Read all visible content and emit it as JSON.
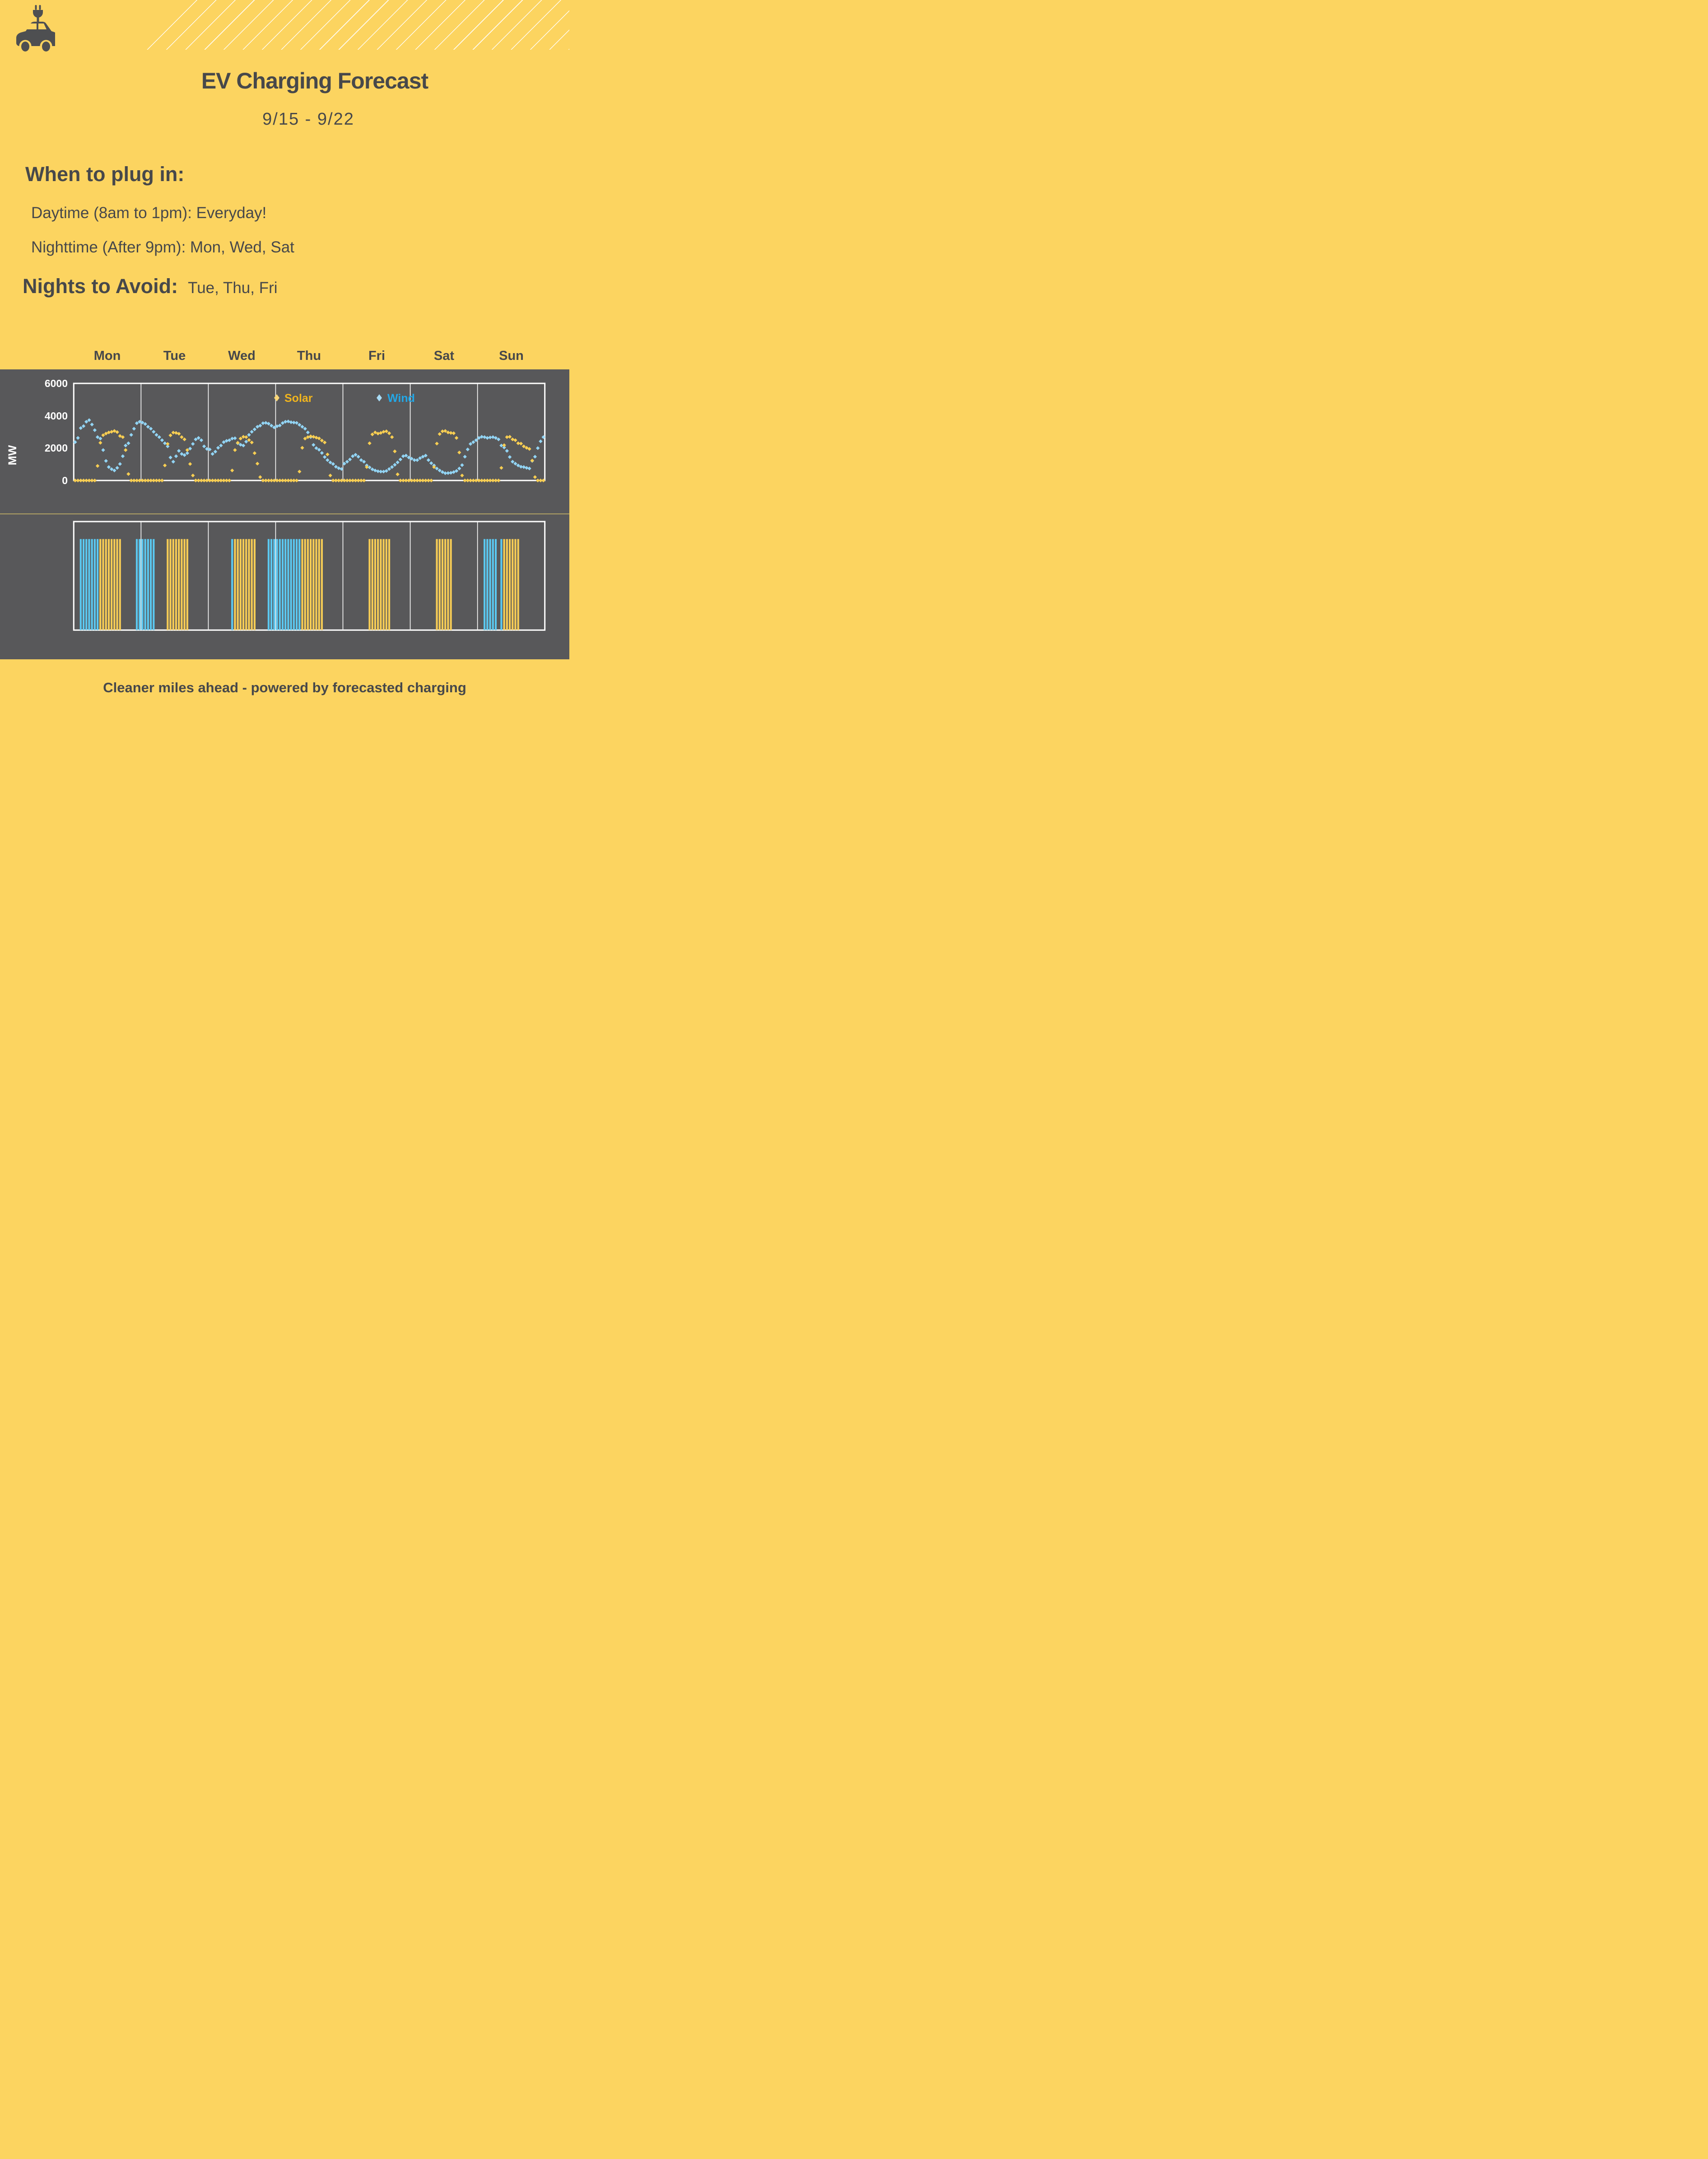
{
  "header": {
    "title": "EV Charging Forecast",
    "date_range": "9/15 - 9/22"
  },
  "icon": "ev-car-with-plug-icon",
  "recommendations": {
    "heading": "When to plug in:",
    "daytime": "Daytime (8am to 1pm): Everyday!",
    "nighttime": "Nighttime (After 9pm): Mon, Wed, Sat"
  },
  "avoid": {
    "label": "Nights to Avoid:",
    "value": "Tue, Thu, Fri"
  },
  "days": [
    "Mon",
    "Tue",
    "Wed",
    "Thu",
    "Fri",
    "Sat",
    "Sun"
  ],
  "footer": {
    "text": "Cleaner miles ahead - powered by forecasted charging"
  },
  "colors": {
    "background": "#FCD460",
    "panel_gray": "#58585A",
    "ink": "#47484A",
    "chart_frame": "#FFFFFF",
    "solar_marker": "#F8CE52",
    "solar_label": "#F0B41E",
    "wind_marker": "#92D4F4",
    "wind_label": "#23A7E6",
    "stripe_solar": "#F6CC55",
    "stripe_wind": "#5BC8F0",
    "panel_divider": "#B1A264"
  },
  "chart_data": [
    {
      "type": "scatter",
      "ylabel": "MW",
      "ylim": [
        0,
        6000
      ],
      "yticks": [
        0,
        2000,
        4000,
        6000
      ],
      "ytick_labels": [
        "6000",
        "4000",
        "2000",
        "0"
      ],
      "x_categories": [
        "Mon",
        "Tue",
        "Wed",
        "Thu",
        "Fri",
        "Sat",
        "Sun"
      ],
      "x_unit": "hour of day (0-23, hourly points per day)",
      "legend": {
        "solar": "Solar",
        "wind": "Wind",
        "position": "top-center-inside"
      },
      "grid": "vertical day dividers only",
      "series": [
        {
          "name": "Wind",
          "days": {
            "Mon": [
              2370,
              2630,
              3240,
              3360,
              3630,
              3730,
              3460,
              3110,
              2680,
              2590,
              1880,
              1210,
              830,
              700,
              620,
              780,
              1020,
              1500,
              2160,
              2300,
              2820,
              3200,
              3540,
              3630
            ],
            "Tue": [
              3580,
              3490,
              3320,
              3200,
              3010,
              2820,
              2680,
              2490,
              2300,
              2110,
              1420,
              1160,
              1500,
              1830,
              1640,
              1570,
              1690,
              1970,
              2260,
              2540,
              2630,
              2490,
              2110,
              1950
            ],
            "Wed": [
              1920,
              1640,
              1780,
              2020,
              2160,
              2370,
              2450,
              2490,
              2590,
              2610,
              2300,
              2210,
              2160,
              2400,
              2820,
              3010,
              3160,
              3320,
              3390,
              3540,
              3560,
              3510,
              3390,
              3280
            ],
            "Thu": [
              3350,
              3400,
              3550,
              3630,
              3650,
              3600,
              3580,
              3560,
              3440,
              3320,
              3200,
              2970,
              2680,
              2200,
              2000,
              1900,
              1700,
              1450,
              1260,
              1115,
              1020,
              850,
              760,
              710
            ],
            "Fri": [
              1040,
              1160,
              1300,
              1500,
              1590,
              1470,
              1260,
              1160,
              930,
              810,
              690,
              620,
              570,
              550,
              550,
              590,
              710,
              830,
              970,
              1120,
              1300,
              1500,
              1540,
              1420
            ],
            "Sat": [
              1350,
              1260,
              1260,
              1380,
              1470,
              1540,
              1260,
              1070,
              930,
              740,
              620,
              520,
              450,
              460,
              475,
              520,
              590,
              740,
              950,
              1470,
              1920,
              2260,
              2370,
              2490
            ],
            "Sun": [
              2630,
              2700,
              2680,
              2630,
              2660,
              2680,
              2630,
              2540,
              2160,
              2040,
              1830,
              1450,
              1160,
              1040,
              930,
              850,
              830,
              780,
              740,
              1210,
              1470,
              2000,
              2420,
              2680
            ]
          }
        },
        {
          "name": "Solar",
          "days": {
            "Mon": [
              0,
              0,
              0,
              0,
              0,
              0,
              0,
              0,
              900,
              2330,
              2800,
              2900,
              2970,
              3010,
              3060,
              2990,
              2750,
              2680,
              1880,
              400,
              0,
              0,
              0,
              0
            ],
            "Tue": [
              0,
              0,
              0,
              0,
              0,
              0,
              0,
              0,
              930,
              2260,
              2790,
              2960,
              2940,
              2890,
              2680,
              2540,
              1880,
              1020,
              310,
              0,
              0,
              0,
              0,
              0
            ],
            "Wed": [
              0,
              0,
              0,
              0,
              0,
              0,
              0,
              0,
              620,
              1880,
              2330,
              2590,
              2700,
              2680,
              2500,
              2350,
              1690,
              1040,
              210,
              0,
              0,
              0,
              0,
              0
            ],
            "Thu": [
              0,
              0,
              0,
              0,
              0,
              0,
              0,
              0,
              550,
              2020,
              2590,
              2680,
              2730,
              2700,
              2650,
              2600,
              2470,
              2350,
              1610,
              310,
              0,
              0,
              0,
              0
            ],
            "Fri": [
              0,
              0,
              0,
              0,
              0,
              0,
              0,
              0,
              830,
              2300,
              2850,
              2970,
              2900,
              2940,
              3010,
              3040,
              2920,
              2680,
              1800,
              380,
              0,
              0,
              0,
              0
            ],
            "Sat": [
              0,
              0,
              0,
              0,
              0,
              0,
              0,
              0,
              830,
              2280,
              2870,
              3040,
              3060,
              2970,
              2940,
              2920,
              2630,
              1730,
              310,
              0,
              0,
              0,
              0,
              0
            ],
            "Sun": [
              0,
              0,
              0,
              0,
              0,
              0,
              0,
              0,
              780,
              2180,
              2680,
              2700,
              2540,
              2490,
              2300,
              2280,
              2110,
              2020,
              1950,
              1230,
              210,
              0,
              0,
              0
            ]
          }
        }
      ]
    },
    {
      "type": "bar",
      "windows": [
        {
          "day": "Mon",
          "source": "wind",
          "from_hour": 2,
          "to_hour": 9
        },
        {
          "day": "Mon",
          "source": "solar",
          "from_hour": 9,
          "to_hour": 17
        },
        {
          "day": "Mon",
          "source": "wind",
          "from_hour": 22,
          "to_hour": 29
        },
        {
          "day": "Tue",
          "source": "solar",
          "from_hour": 9,
          "to_hour": 17
        },
        {
          "day": "Wed",
          "source": "wind",
          "from_hour": 8,
          "to_hour": 9
        },
        {
          "day": "Wed",
          "source": "solar",
          "from_hour": 9,
          "to_hour": 17
        },
        {
          "day": "Wed",
          "source": "wind",
          "from_hour": 21,
          "to_hour": 33
        },
        {
          "day": "Thu",
          "source": "solar",
          "from_hour": 9,
          "to_hour": 17
        },
        {
          "day": "Fri",
          "source": "solar",
          "from_hour": 9,
          "to_hour": 17
        },
        {
          "day": "Sat",
          "source": "solar",
          "from_hour": 9,
          "to_hour": 15
        },
        {
          "day": "Sun",
          "source": "wind",
          "from_hour": 2,
          "to_hour": 7
        },
        {
          "day": "Sun",
          "source": "wind",
          "from_hour": 8,
          "to_hour": 9
        },
        {
          "day": "Sun",
          "source": "solar",
          "from_hour": 9,
          "to_hour": 15
        }
      ]
    }
  ]
}
